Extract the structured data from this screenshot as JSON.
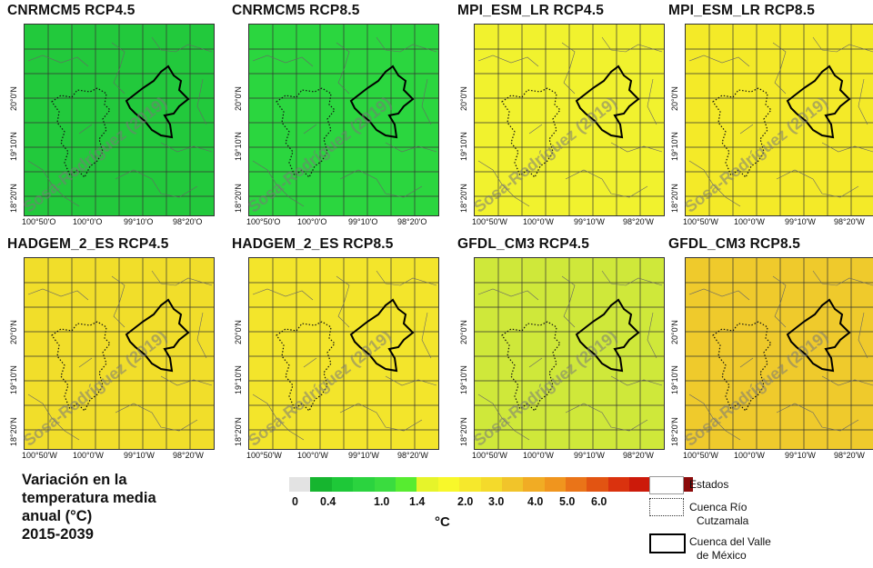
{
  "panels": [
    {
      "title": "CNRMCM5 RCP4.5",
      "fill": "#22c93c",
      "xlabels": [
        "100°50'O",
        "100°0'O",
        "99°10'O",
        "98°20'O"
      ],
      "ylabels": [
        "20°0'N",
        "19°10'N",
        "18°20'N"
      ],
      "watermark": "Sosa-Rodríguez (2019)"
    },
    {
      "title": "CNRMCM5 RCP8.5",
      "fill": "#2bd63f",
      "xlabels": [
        "100°50'O",
        "100°0'O",
        "99°10'O",
        "98°20'O"
      ],
      "ylabels": [
        "20°0'N",
        "19°10'N",
        "18°20'N"
      ],
      "watermark": "Sosa-Rodríguez (2019)"
    },
    {
      "title": "MPI_ESM_LR RCP4.5",
      "fill": "#f1f22e",
      "xlabels": [
        "100°50'W",
        "100°0'W",
        "99°10'W",
        "98°20'W"
      ],
      "ylabels": [
        "20°0'N",
        "19°10'N",
        "18°20'N"
      ],
      "watermark": "Sosa-Rodríguez (2019)"
    },
    {
      "title": "MPI_ESM_LR RCP8.5",
      "fill": "#f4ea28",
      "xlabels": [
        "100°50'W",
        "100°0'W",
        "99°10'W",
        "98°20'W"
      ],
      "ylabels": [
        "20°0'N",
        "19°10'N",
        "18°20'N"
      ],
      "watermark": "Sosa-Rodríguez (2019)"
    },
    {
      "title": "HADGEM_2_ES RCP4.5",
      "fill": "#f1de2a",
      "xlabels": [
        "100°50'W",
        "100°0'W",
        "99°10'W",
        "98°20'W"
      ],
      "ylabels": [
        "20°0'N",
        "19°10'N",
        "18°20'N"
      ],
      "watermark": "Sosa-Rodríguez (2019)"
    },
    {
      "title": "HADGEM_2_ES RCP8.5",
      "fill": "#f3e52b",
      "xlabels": [
        "100°50'W",
        "100°0'W",
        "99°10'W",
        "98°20'W"
      ],
      "ylabels": [
        "20°0'N",
        "19°10'N",
        "18°20'N"
      ],
      "watermark": "Sosa-Rodríguez (2019)"
    },
    {
      "title": "GFDL_CM3 RCP4.5",
      "fill": "#cfe83a",
      "xlabels": [
        "100°50'W",
        "100°0'W",
        "99°10'W",
        "98°20'W"
      ],
      "ylabels": [
        "20°0'N",
        "19°10'N",
        "18°20'N"
      ],
      "watermark": "Sosa-Rodríguez (2019)"
    },
    {
      "title": "GFDL_CM3 RCP8.5",
      "fill": "#efca2c",
      "xlabels": [
        "100°50'W",
        "100°0'W",
        "99°10'W",
        "98°20'W"
      ],
      "ylabels": [
        "20°0'N",
        "19°10'N",
        "18°20'N"
      ],
      "watermark": "Sosa-Rodríguez (2019)"
    }
  ],
  "legend": {
    "title_lines": [
      "Variación en la",
      "temperatura media",
      "anual (°C)",
      "2015-2039"
    ],
    "colors": [
      "#e3e3e3",
      "#16b52f",
      "#1ec838",
      "#2bd33f",
      "#3adc3f",
      "#57ec30",
      "#e6f42a",
      "#f8f82a",
      "#f6e82c",
      "#f4da2b",
      "#f1c42a",
      "#f1ac24",
      "#f0951e",
      "#ea7418",
      "#e25412",
      "#da320e",
      "#cc1a0a",
      "#b0100a",
      "#8b0a0a"
    ],
    "ticks": [
      "0",
      "0.4",
      "1.0",
      "1.4",
      "2.0",
      "3.0",
      "4.0",
      "5.0",
      "6.0"
    ],
    "unit": "°C",
    "keys": [
      {
        "label_lines": [
          "Estados"
        ]
      },
      {
        "label_lines": [
          "Cuenca Río",
          "Cutzamala"
        ]
      },
      {
        "label_lines": [
          "Cuenca del Valle",
          "de México"
        ]
      }
    ]
  }
}
